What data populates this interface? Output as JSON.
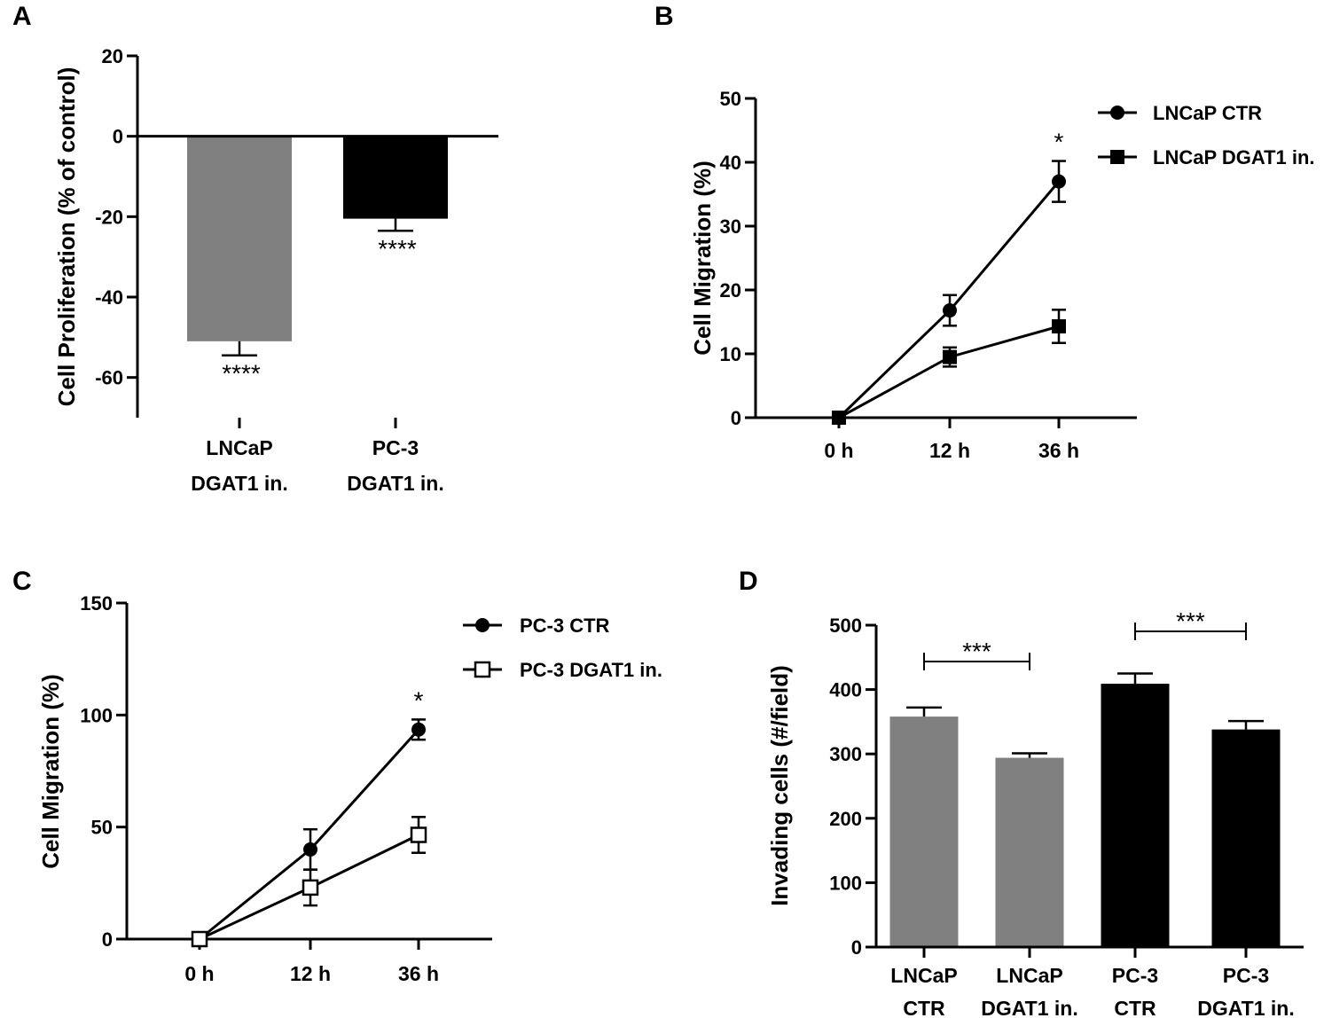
{
  "chart_data": [
    {
      "panel": "A",
      "type": "bar",
      "ylabel": "Cell Proliferation (% of control)",
      "ylim": [
        -70,
        20
      ],
      "yticks": [
        20,
        0,
        -20,
        -40,
        -60
      ],
      "categories": [
        [
          "LNCaP",
          "DGAT1 in."
        ],
        [
          "PC-3",
          "DGAT1 in."
        ]
      ],
      "values": [
        -51,
        -20.5
      ],
      "errors": [
        3.5,
        3
      ],
      "colors": [
        "#808080",
        "#000000"
      ],
      "significance": [
        "****",
        "****"
      ]
    },
    {
      "panel": "B",
      "type": "line",
      "ylabel": "Cell Migration (%)",
      "ylim": [
        0,
        50
      ],
      "yticks": [
        0,
        10,
        20,
        30,
        40,
        50
      ],
      "categories": [
        "0 h",
        "12 h",
        "36 h"
      ],
      "series": [
        {
          "name": "LNCaP CTR",
          "marker": "circle-filled",
          "values": [
            0,
            16.8,
            37
          ],
          "errors": [
            0,
            2.4,
            3.2
          ]
        },
        {
          "name": "LNCaP DGAT1 in.",
          "marker": "square-filled",
          "values": [
            0,
            9.5,
            14.3
          ],
          "errors": [
            0,
            1.5,
            2.6
          ]
        }
      ],
      "significance": [
        {
          "category": "36 h",
          "label": "*"
        }
      ]
    },
    {
      "panel": "C",
      "type": "line",
      "ylabel": "Cell Migration (%)",
      "ylim": [
        0,
        150
      ],
      "yticks": [
        0,
        50,
        100,
        150
      ],
      "categories": [
        "0 h",
        "12 h",
        "36 h"
      ],
      "series": [
        {
          "name": "PC-3 CTR",
          "marker": "circle-filled",
          "values": [
            0,
            40,
            93.5
          ],
          "errors": [
            0,
            9,
            4.5
          ]
        },
        {
          "name": "PC-3 DGAT1 in.",
          "marker": "square-open",
          "values": [
            0,
            23,
            46.5
          ],
          "errors": [
            0,
            8,
            8
          ]
        }
      ],
      "significance": [
        {
          "category": "36 h",
          "label": "*"
        }
      ]
    },
    {
      "panel": "D",
      "type": "bar",
      "ylabel": "Invading cells (#/field)",
      "ylim": [
        0,
        500
      ],
      "yticks": [
        0,
        100,
        200,
        300,
        400,
        500
      ],
      "categories": [
        [
          "LNCaP",
          "CTR"
        ],
        [
          "LNCaP",
          "DGAT1 in."
        ],
        [
          "PC-3",
          "CTR"
        ],
        [
          "PC-3",
          "DGAT1 in."
        ]
      ],
      "values": [
        358,
        294,
        409,
        338
      ],
      "errors": [
        14,
        7,
        16,
        13
      ],
      "colors": [
        "#808080",
        "#808080",
        "#000000",
        "#000000"
      ],
      "brackets": [
        {
          "from": 0,
          "to": 1,
          "label": "***"
        },
        {
          "from": 2,
          "to": 3,
          "label": "***"
        }
      ]
    }
  ]
}
